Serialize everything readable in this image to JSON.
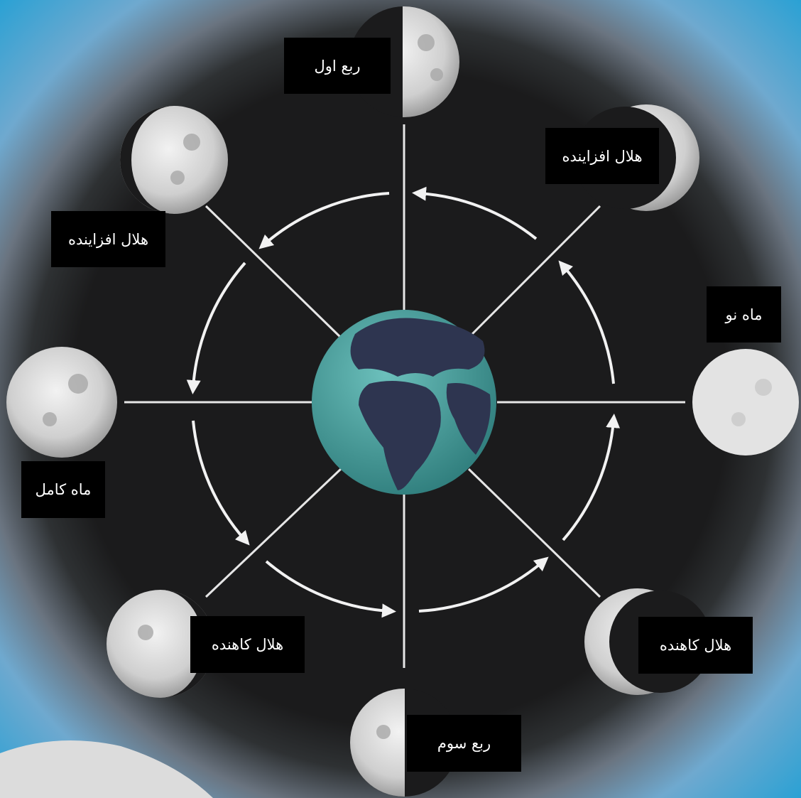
{
  "labels": {
    "first_quarter": "ربع اول",
    "waxing_crescent_right": "هلال افزاینده",
    "waxing_gibbous_left": "هلال افزاینده",
    "new_moon": "ماه نو",
    "full_moon": "ماه کامل",
    "waning_crescent_left": "هلال کاهنده",
    "waning_crescent_right": "هلال کاهنده",
    "third_quarter": "ربع سوم"
  },
  "colors": {
    "background": "#1b1b1c",
    "earth_ocean": "#4fa3a0",
    "earth_land": "#2e3550",
    "orbit": "#f2f2f2",
    "moon_light": "#d9d9d9",
    "moon_dark": "#1b1b1c",
    "outer_glow": "#2aa1d4"
  }
}
